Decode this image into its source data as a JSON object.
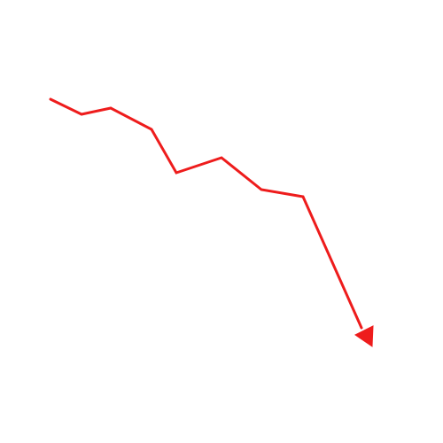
{
  "graphic": {
    "icon": "downtrend-arrow-icon",
    "color": "#ee1c1c",
    "background": "#ffffff"
  }
}
